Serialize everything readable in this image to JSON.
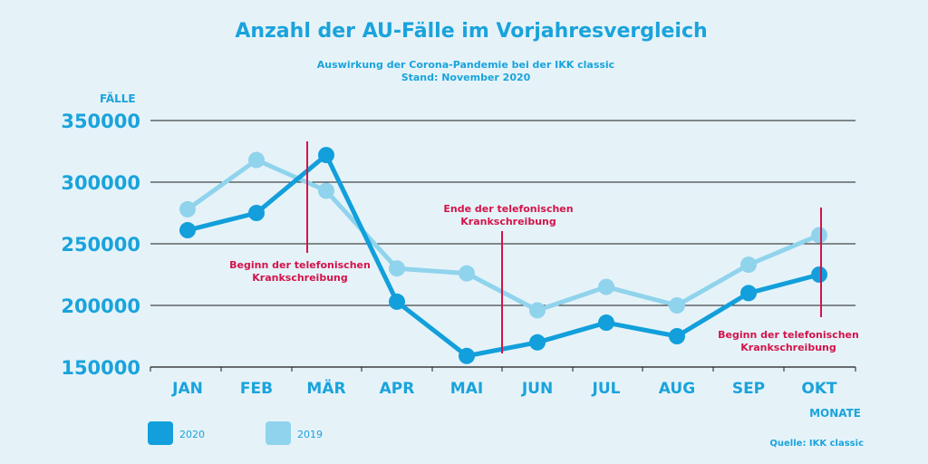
{
  "chart_data": {
    "type": "line",
    "title": "Anzahl der AU-Fälle im Vorjahresvergleich",
    "subtitle": [
      "Auswirkung der Corona-Pandemie bei der IKK classic",
      "Stand: November 2020"
    ],
    "ylabel": "FÄLLE",
    "xlabel": "MONATE",
    "categories": [
      "JAN",
      "FEB",
      "MÄR",
      "APR",
      "MAI",
      "JUN",
      "JUL",
      "AUG",
      "SEP",
      "OKT"
    ],
    "ylim": [
      150000,
      350000
    ],
    "yticks": [
      "150000",
      "200000",
      "250000",
      "300000",
      "350000"
    ],
    "grid": true,
    "legend_position": "bottom-left",
    "series": [
      {
        "name": "2020",
        "color": "#129fdb",
        "values": [
          261000,
          275000,
          322000,
          203000,
          159000,
          170000,
          186000,
          175000,
          210000,
          225000
        ]
      },
      {
        "name": "2019",
        "color": "#90d3ec",
        "values": [
          278000,
          318000,
          293000,
          230000,
          226000,
          196000,
          215000,
          200000,
          233000,
          257000
        ]
      }
    ],
    "annotations": [
      {
        "at": "MÄR",
        "lines": [
          "Beginn der telefonischen",
          "Krankschreibung"
        ]
      },
      {
        "at": "MAI-JUN",
        "lines": [
          "Ende der telefonischen",
          "Krankschreibung"
        ]
      },
      {
        "at": "OKT",
        "lines": [
          "Beginn der telefonischen",
          "Krankschreibung"
        ]
      }
    ],
    "source": "Quelle: IKK classic"
  }
}
